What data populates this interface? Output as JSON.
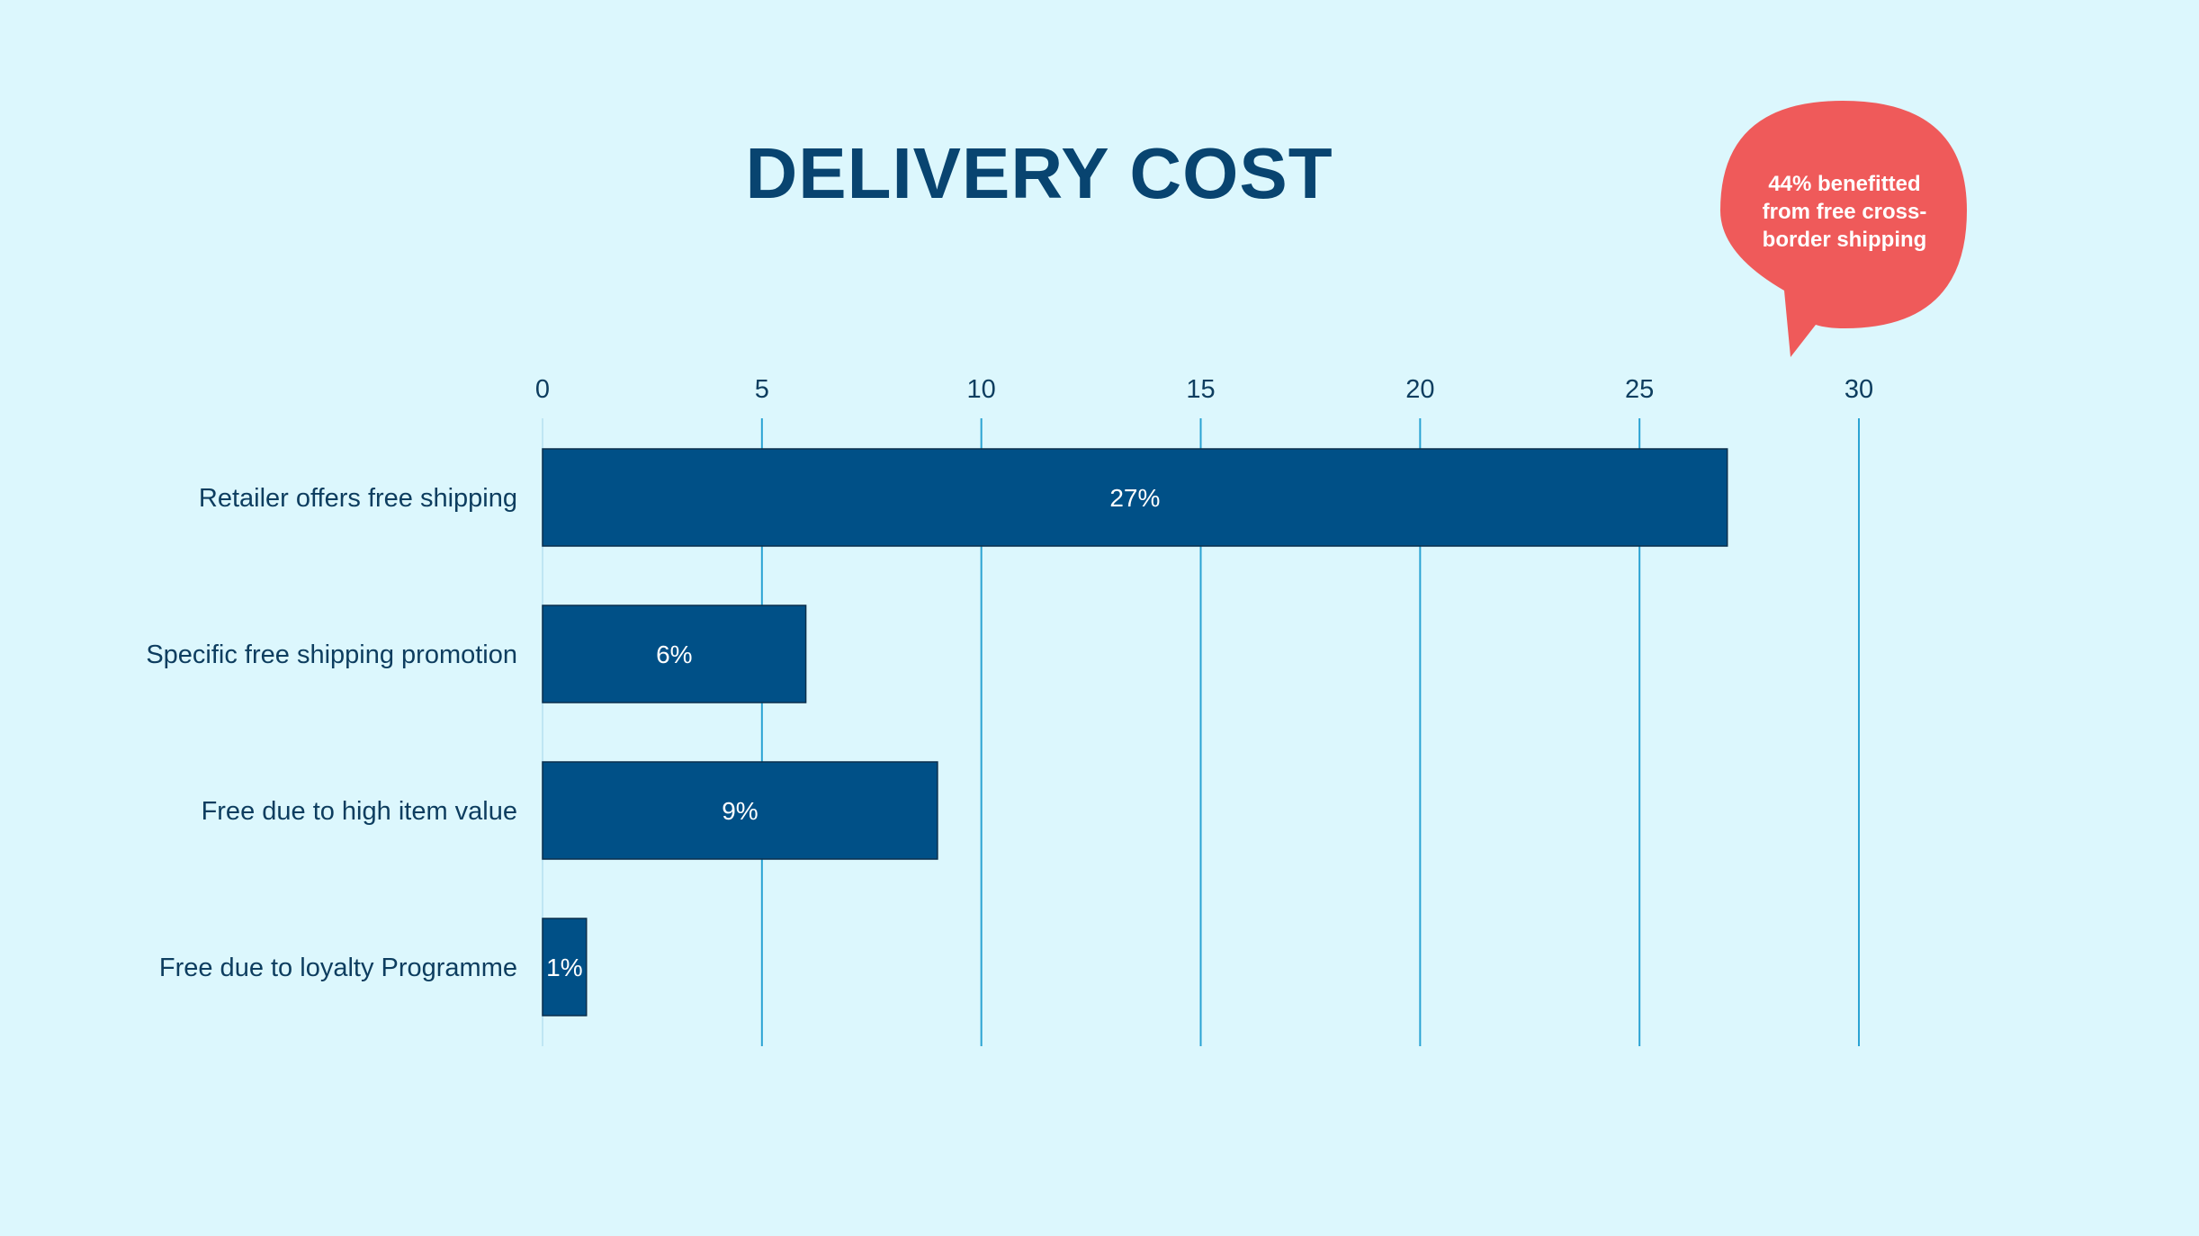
{
  "chart_data": {
    "type": "bar",
    "orientation": "horizontal",
    "title": "DELIVERY COST",
    "categories": [
      "Retailer offers free shipping",
      "Specific free shipping promotion",
      "Free due to high item value",
      "Free due to loyalty Programme"
    ],
    "values": [
      27,
      6,
      9,
      1
    ],
    "data_labels": [
      "27%",
      "6%",
      "9%",
      "1%"
    ],
    "xlim": [
      0,
      30
    ],
    "xticks": [
      "0",
      "5",
      "10",
      "15",
      "20",
      "25",
      "30"
    ],
    "x_axis_position": "top",
    "grid": "vertical",
    "legend": "none",
    "colors": {
      "bar": "#005087",
      "bar_label": "#ffffff",
      "grid": "#2aa3d3",
      "text": "#0d3d5f",
      "background": "#dcf7fd"
    }
  },
  "callout": {
    "text": "44% benefitted from free cross-border shipping",
    "line1": "44% benefitted",
    "line2": "from free cross-",
    "line3": "border shipping",
    "color": "#ef5a5a"
  }
}
